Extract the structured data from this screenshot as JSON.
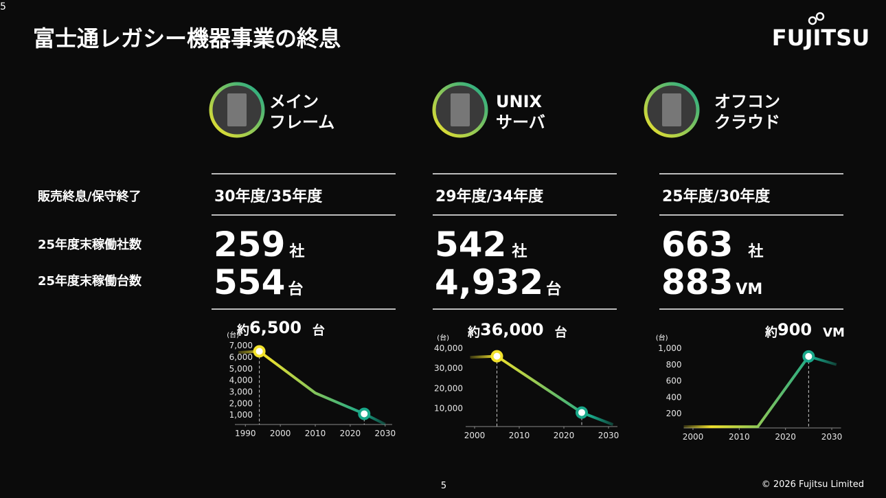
{
  "corner_label": "5",
  "title": "富士通レガシー機器事業の終息",
  "logo": "FUJITSU",
  "row_labels": [
    "販売終息/保守終了",
    "25年度末稼働社数",
    "25年度末稼働台数"
  ],
  "columns": [
    {
      "name": [
        "メイン",
        "フレーム"
      ],
      "end": "30年度/35年度",
      "companies": {
        "number": "259",
        "unit": "社"
      },
      "units": {
        "number": "554",
        "unit": "台"
      }
    },
    {
      "name": [
        "UNIX",
        "サーバ"
      ],
      "end": "29年度/34年度",
      "companies": {
        "number": "542",
        "unit": "社"
      },
      "units": {
        "number": "4,932",
        "unit": "台"
      }
    },
    {
      "name": [
        "オフコン",
        "クラウド"
      ],
      "end": "25年度/30年度",
      "companies": {
        "number": "663",
        "unit": "社"
      },
      "units": {
        "number": "883",
        "unit": "VM"
      }
    }
  ],
  "chart_data": [
    {
      "type": "line",
      "y_unit": "(台)",
      "annotation": {
        "prefix": "約",
        "number": "6,500",
        "unit": "台"
      },
      "x": [
        1988,
        1994,
        2010,
        2024,
        2030
      ],
      "values": [
        6400,
        6500,
        2900,
        1100,
        200
      ],
      "colors": [
        "#f2e22c",
        "#19a88a"
      ],
      "points": {
        "x": [
          1994,
          2024
        ],
        "values": [
          6500,
          1100
        ],
        "colors": [
          "#f2e22c",
          "#19a88a"
        ]
      },
      "xlim": [
        1987,
        2032
      ],
      "xticks": [
        1990,
        2000,
        2010,
        2020,
        2030
      ],
      "ylim": [
        0,
        7300
      ],
      "yticks": [
        {
          "value": 1000,
          "label": "1,000"
        },
        {
          "value": 2000,
          "label": "2,000"
        },
        {
          "value": 3000,
          "label": "3,000"
        },
        {
          "value": 4000,
          "label": "4,000"
        },
        {
          "value": 5000,
          "label": "5,000"
        },
        {
          "value": 6000,
          "label": "6,000"
        },
        {
          "value": 7000,
          "label": "7,000"
        }
      ]
    },
    {
      "type": "line",
      "y_unit": "(台)",
      "annotation": {
        "prefix": "約",
        "number": "36,000",
        "unit": "台"
      },
      "x": [
        1999,
        2005,
        2024,
        2031
      ],
      "values": [
        35500,
        36000,
        8000,
        2000
      ],
      "colors": [
        "#f2e22c",
        "#19a88a"
      ],
      "points": {
        "x": [
          2005,
          2024
        ],
        "values": [
          36000,
          8000
        ],
        "colors": [
          "#f2e22c",
          "#19a88a"
        ]
      },
      "xlim": [
        1998,
        2032
      ],
      "xticks": [
        2000,
        2010,
        2020,
        2030
      ],
      "ylim": [
        0,
        41000
      ],
      "yticks": [
        {
          "value": 10000,
          "label": "10,000"
        },
        {
          "value": 20000,
          "label": "20,000"
        },
        {
          "value": 30000,
          "label": "30,000"
        },
        {
          "value": 40000,
          "label": "40,000"
        }
      ]
    },
    {
      "type": "line",
      "y_unit": "(台)",
      "annotation": {
        "prefix": "約",
        "number": "900",
        "unit": "VM"
      },
      "x": [
        1998,
        2014,
        2025,
        2031
      ],
      "values": [
        40,
        40,
        900,
        800
      ],
      "colors": [
        "#f2e22c",
        "#19a88a"
      ],
      "points": {
        "x": [
          2025
        ],
        "values": [
          900
        ],
        "colors": [
          "#19a88a"
        ]
      },
      "xlim": [
        1998,
        2032
      ],
      "xticks": [
        2000,
        2010,
        2020,
        2030
      ],
      "ylim": [
        0,
        1050
      ],
      "yticks": [
        200,
        400,
        600,
        800,
        {
          "value": 1000,
          "label": "1,000"
        }
      ]
    }
  ],
  "page_number": "5",
  "copyright": "© 2026 Fujitsu Limited"
}
